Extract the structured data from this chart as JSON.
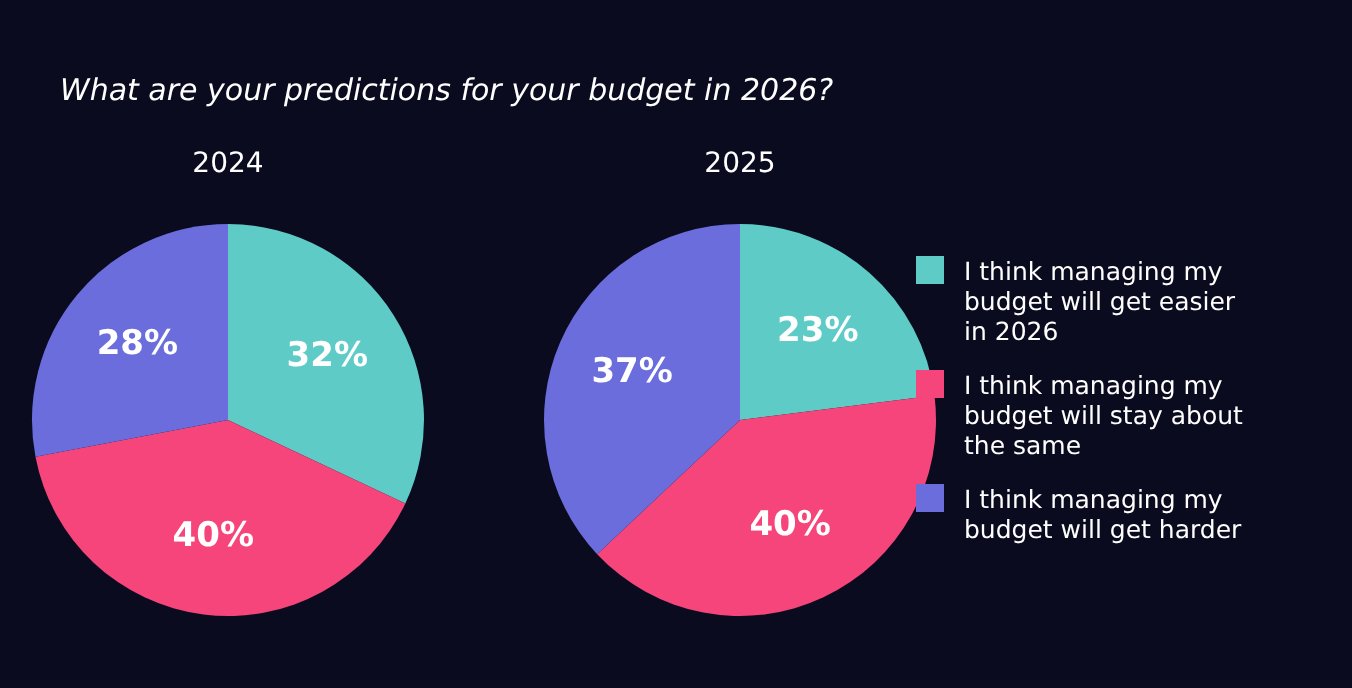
{
  "chart_data": [
    {
      "type": "pie",
      "title": "What are your predictions for your budget in 2026?",
      "subtitle": "2024",
      "categories": [
        null,
        null,
        null
      ],
      "values": [
        32,
        40,
        28
      ],
      "colors": [
        "#5fcbc7",
        "#f5457b",
        "#6b6ddc"
      ],
      "value_labels": [
        "32%",
        "40%",
        "28%"
      ],
      "legend": false
    },
    {
      "type": "pie",
      "subtitle": "2025",
      "categories": [
        "I think managing my budget will get easier in 2026",
        "I think managing my budget will stay about the same",
        "I think managing my budget will get harder"
      ],
      "values": [
        23,
        40,
        37
      ],
      "colors": [
        "#5fcbc7",
        "#f5457b",
        "#6b6ddc"
      ],
      "value_labels": [
        "23%",
        "40%",
        "37%"
      ],
      "legend": "right"
    }
  ]
}
